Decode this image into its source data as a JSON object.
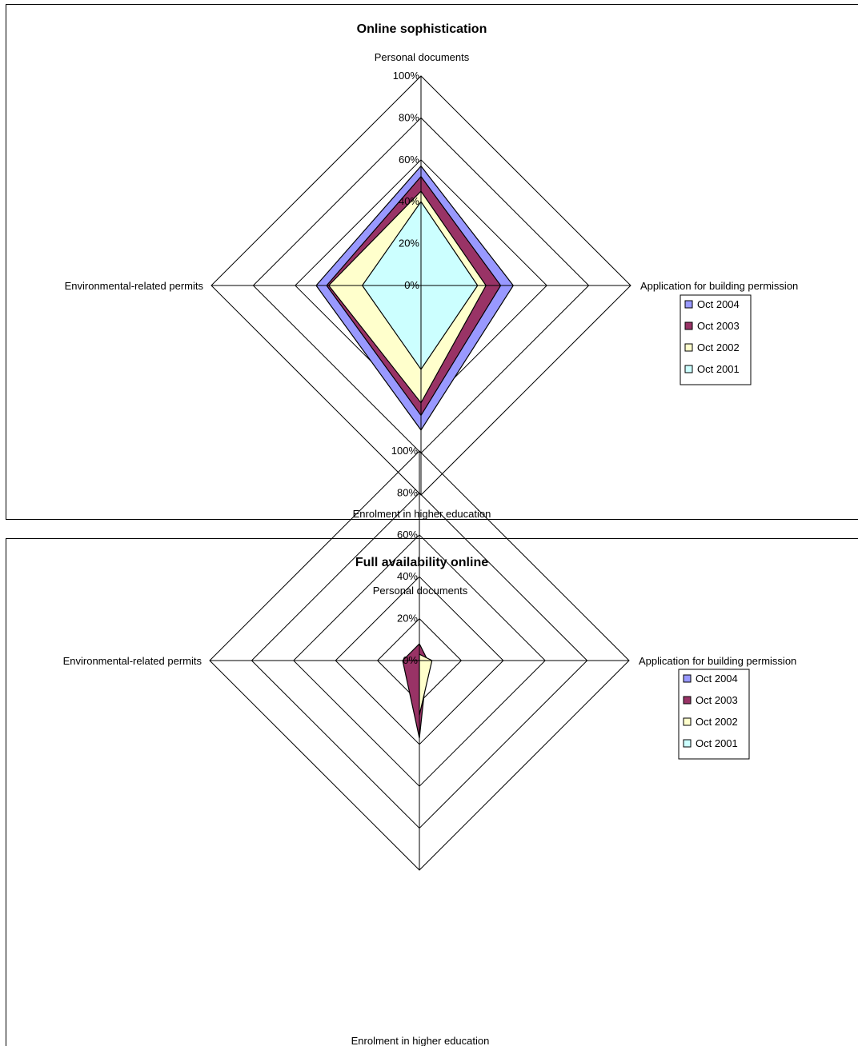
{
  "chart_data": [
    {
      "type": "radar",
      "title": "Online sophistication",
      "axes": [
        "Personal documents",
        "Application for building permission",
        "Enrolment in higher education",
        "Environmental-related permits"
      ],
      "rlim": [
        0,
        100
      ],
      "ticks": [
        "0%",
        "20%",
        "40%",
        "60%",
        "80%",
        "100%"
      ],
      "grid": true,
      "legend_position": "right",
      "series": [
        {
          "name": "Oct 2004",
          "color": "#9999FF",
          "values": [
            57,
            44,
            69,
            50
          ]
        },
        {
          "name": "Oct 2003",
          "color": "#993366",
          "values": [
            52,
            38,
            62,
            45
          ]
        },
        {
          "name": "Oct 2002",
          "color": "#FFFFCC",
          "values": [
            45,
            31,
            56,
            44
          ]
        },
        {
          "name": "Oct 2001",
          "color": "#CCFFFF",
          "values": [
            40,
            27,
            40,
            28
          ]
        }
      ]
    },
    {
      "type": "radar",
      "title": "Full availability online",
      "axes": [
        "Personal documents",
        "Application for building permission",
        "Enrolment in higher education",
        "Environmental-related permits"
      ],
      "rlim": [
        0,
        100
      ],
      "ticks": [
        "0%",
        "20%",
        "40%",
        "60%",
        "80%",
        "100%"
      ],
      "grid": true,
      "legend_position": "right",
      "series": [
        {
          "name": "Oct 2004",
          "color": "#9999FF",
          "values": [
            0,
            0,
            0,
            0
          ]
        },
        {
          "name": "Oct 2003",
          "color": "#993366",
          "values": [
            8,
            4,
            37,
            8
          ]
        },
        {
          "name": "Oct 2002",
          "color": "#FFFFCC",
          "values": [
            3,
            6,
            26,
            0
          ]
        },
        {
          "name": "Oct 2001",
          "color": "#CCFFFF",
          "values": [
            0,
            0,
            0,
            0
          ]
        }
      ]
    }
  ]
}
